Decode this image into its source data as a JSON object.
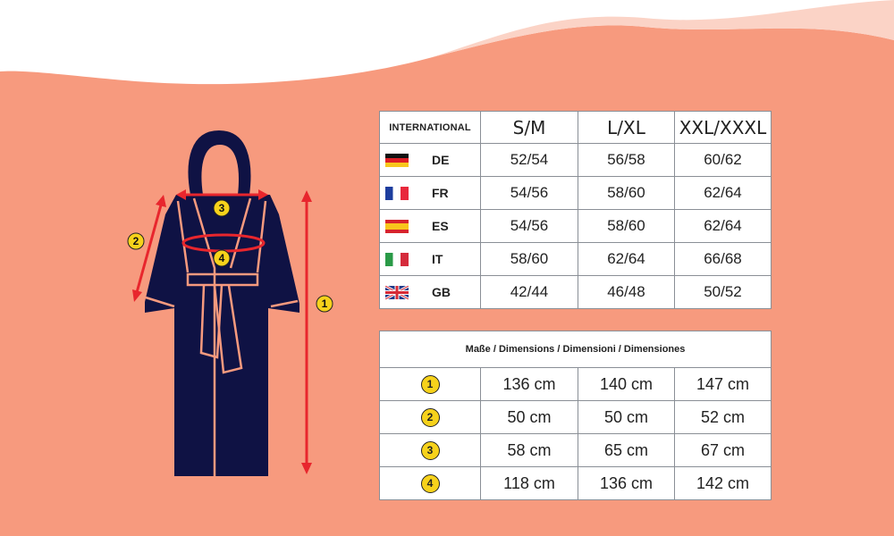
{
  "colors": {
    "background": "#f79a7e",
    "robe": "#0f1244",
    "arrow": "#e8262d",
    "badge": "#f7d21b"
  },
  "illustration": {
    "badges": [
      "1",
      "2",
      "3",
      "4"
    ]
  },
  "size_table": {
    "header": "INTERNATIONAL",
    "sizes": [
      "S/M",
      "L/XL",
      "XXL/XXXL"
    ],
    "rows": [
      {
        "country": "DE",
        "flag": "germany-flag",
        "values": [
          "52/54",
          "56/58",
          "60/62"
        ]
      },
      {
        "country": "FR",
        "flag": "france-flag",
        "values": [
          "54/56",
          "58/60",
          "62/64"
        ]
      },
      {
        "country": "ES",
        "flag": "spain-flag",
        "values": [
          "54/56",
          "58/60",
          "62/64"
        ]
      },
      {
        "country": "IT",
        "flag": "italy-flag",
        "values": [
          "58/60",
          "62/64",
          "66/68"
        ]
      },
      {
        "country": "GB",
        "flag": "uk-flag",
        "values": [
          "42/44",
          "46/48",
          "50/52"
        ]
      }
    ]
  },
  "dimensions_table": {
    "header": "Maße / Dimensions / Dimensioni / Dimensiones",
    "rows": [
      {
        "badge": "1",
        "values": [
          "136 cm",
          "140 cm",
          "147 cm"
        ]
      },
      {
        "badge": "2",
        "values": [
          "50 cm",
          "50 cm",
          "52 cm"
        ]
      },
      {
        "badge": "3",
        "values": [
          "58 cm",
          "65 cm",
          "67 cm"
        ]
      },
      {
        "badge": "4",
        "values": [
          "118 cm",
          "136 cm",
          "142 cm"
        ]
      }
    ]
  }
}
